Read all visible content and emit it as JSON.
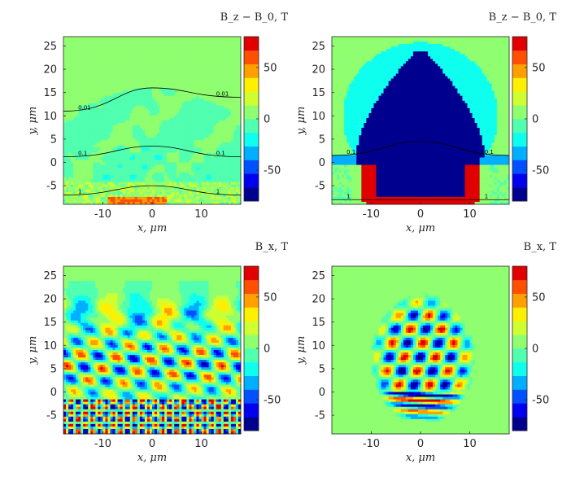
{
  "chart_data": [
    {
      "type": "heatmap",
      "title": "B_z − B_0, T",
      "xlabel": "x, μm",
      "ylabel": "y, μm",
      "xlim": [
        -18,
        18
      ],
      "ylim": [
        -9,
        27
      ],
      "xticks": [
        -10,
        0,
        10
      ],
      "yticks": [
        -5,
        0,
        5,
        10,
        15,
        20,
        25
      ],
      "colorbar": {
        "clim": [
          -80,
          80
        ],
        "levels": 12,
        "ticks": [
          50,
          0,
          -50
        ]
      },
      "field": "bz_shot",
      "contours": [
        {
          "label": "0.01",
          "y_levels": [
            11,
            16,
            14
          ]
        },
        {
          "label": "0.1",
          "y_levels": [
            1.2,
            3.5,
            1.2
          ]
        },
        {
          "label": "1",
          "y_levels": [
            -7,
            -5,
            -7
          ]
        }
      ]
    },
    {
      "type": "heatmap",
      "title": "B_z − B_0, T",
      "xlabel": "x, μm",
      "ylabel": "y, μm",
      "xlim": [
        -18,
        18
      ],
      "ylim": [
        -9,
        27
      ],
      "xticks": [
        -10,
        0,
        10
      ],
      "yticks": [
        -5,
        0,
        5,
        10,
        15,
        20,
        25
      ],
      "colorbar": {
        "clim": [
          -80,
          80
        ],
        "levels": 12,
        "ticks": [
          50,
          0,
          -50
        ]
      },
      "field": "bz_cavity",
      "contours": [
        {
          "label": "0.1",
          "y_levels": [
            1.5,
            4.5,
            1.5
          ]
        },
        {
          "label": "1",
          "y_levels": [
            -8,
            -8,
            -8
          ]
        }
      ]
    },
    {
      "type": "heatmap",
      "title": "B_x, T",
      "xlabel": "x, μm",
      "ylabel": "y, μm",
      "xlim": [
        -18,
        18
      ],
      "ylim": [
        -9,
        27
      ],
      "xticks": [
        -10,
        0,
        10
      ],
      "yticks": [
        -5,
        0,
        5,
        10,
        15,
        20,
        25
      ],
      "colorbar": {
        "clim": [
          -80,
          80
        ],
        "levels": 12,
        "ticks": [
          50,
          0,
          -50
        ]
      },
      "field": "bx_shot"
    },
    {
      "type": "heatmap",
      "title": "B_x, T",
      "xlabel": "x, μm",
      "ylabel": "y, μm",
      "xlim": [
        -18,
        18
      ],
      "ylim": [
        -9,
        27
      ],
      "xticks": [
        -10,
        0,
        10
      ],
      "yticks": [
        -5,
        0,
        5,
        10,
        15,
        20,
        25
      ],
      "colorbar": {
        "clim": [
          -80,
          80
        ],
        "levels": 12,
        "ticks": [
          50,
          0,
          -50
        ]
      },
      "field": "bx_cavity"
    }
  ],
  "colormap": [
    "#00008f",
    "#0000ef",
    "#0050ff",
    "#00afff",
    "#0fffef",
    "#50ffaf",
    "#8fff70",
    "#cfff30",
    "#ffef00",
    "#ff9f00",
    "#ff4f00",
    "#e00000"
  ]
}
